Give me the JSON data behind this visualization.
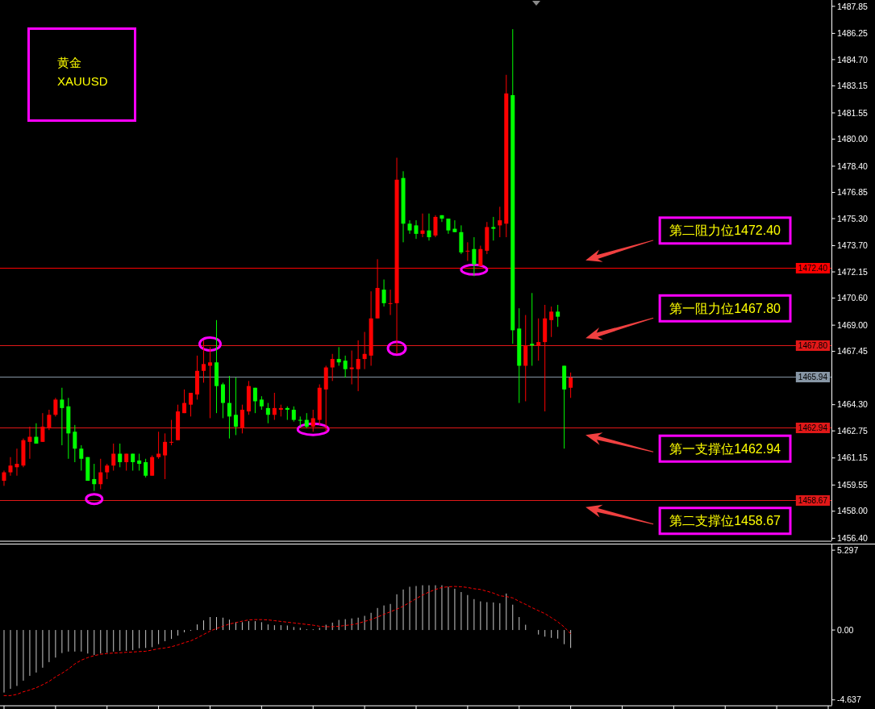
{
  "chart_data": [
    {
      "type": "candlestick",
      "title": "黄金",
      "subtitle": "XAUUSD",
      "categories": [
        null,
        null,
        null,
        null,
        null,
        null,
        null,
        null,
        null,
        null,
        null,
        null,
        null,
        null,
        null,
        null,
        null,
        null,
        null,
        null,
        null,
        null,
        null,
        null,
        null,
        null,
        null,
        null,
        null,
        null,
        null,
        null,
        null,
        null,
        null,
        null,
        null,
        null,
        null,
        null,
        null,
        null,
        null,
        null,
        null,
        null,
        null,
        null,
        null,
        null,
        null,
        null,
        null,
        null,
        null,
        null,
        null,
        null,
        null,
        null,
        null,
        null,
        null,
        null,
        null,
        null,
        null,
        null,
        null,
        null,
        null,
        null,
        null,
        null,
        null,
        null,
        null,
        null,
        null,
        null,
        null,
        null,
        null,
        null,
        null,
        null,
        null,
        null,
        null,
        null,
        null,
        null,
        null,
        null,
        null,
        null,
        null,
        null,
        null,
        null,
        null,
        null,
        null,
        null,
        null,
        null,
        null,
        null,
        null,
        null,
        null,
        null,
        null,
        null,
        null,
        null,
        null,
        null,
        null,
        null,
        null,
        null,
        null,
        null,
        null,
        null,
        null,
        null,
        null
      ],
      "ohlc": [
        [
          1459.8,
          1460.4,
          1459.5,
          1460.3
        ],
        [
          1460.3,
          1461.2,
          1460.1,
          1460.7
        ],
        [
          1460.6,
          1461.7,
          1460.1,
          1460.8
        ],
        [
          1460.7,
          1462.3,
          1460.6,
          1462.2
        ],
        [
          1462.1,
          1463.0,
          1461.1,
          1462.4
        ],
        [
          1462.4,
          1463.2,
          1462.0,
          1462.0
        ],
        [
          1462.1,
          1463.8,
          1462.1,
          1463.0
        ],
        [
          1462.9,
          1464.0,
          1462.8,
          1463.7
        ],
        [
          1463.7,
          1464.7,
          1463.6,
          1464.6
        ],
        [
          1464.6,
          1465.3,
          1461.9,
          1464.1
        ],
        [
          1464.2,
          1464.7,
          1461.1,
          1462.6
        ],
        [
          1462.7,
          1463.1,
          1460.9,
          1461.7
        ],
        [
          1461.7,
          1461.9,
          1460.4,
          1461.1
        ],
        [
          1461.2,
          1461.2,
          1459.8,
          1459.8
        ],
        [
          1459.9,
          1460.8,
          1459.2,
          1459.6
        ],
        [
          1459.6,
          1461.1,
          1459.3,
          1460.3
        ],
        [
          1460.3,
          1460.8,
          1459.9,
          1460.7
        ],
        [
          1460.7,
          1462.0,
          1460.4,
          1461.4
        ],
        [
          1461.4,
          1462.0,
          1460.6,
          1460.9
        ],
        [
          1460.9,
          1461.4,
          1460.4,
          1461.4
        ],
        [
          1461.4,
          1461.4,
          1460.4,
          1460.9
        ],
        [
          1461.0,
          1461.4,
          1460.4,
          1460.8
        ],
        [
          1460.9,
          1461.1,
          1460.0,
          1460.1
        ],
        [
          1460.1,
          1461.3,
          1460.1,
          1461.2
        ],
        [
          1461.2,
          1462.7,
          1461.1,
          1461.4
        ],
        [
          1461.3,
          1462.6,
          1459.9,
          1462.1
        ],
        [
          1462.1,
          1463.4,
          1461.9,
          1462.1
        ],
        [
          1462.2,
          1464.3,
          1462.2,
          1463.9
        ],
        [
          1463.8,
          1465.2,
          1463.8,
          1464.4
        ],
        [
          1464.3,
          1465.0,
          1463.6,
          1465.0
        ],
        [
          1464.9,
          1467.2,
          1464.6,
          1466.3
        ],
        [
          1466.3,
          1468.1,
          1465.6,
          1466.7
        ],
        [
          1466.6,
          1467.7,
          1463.5,
          1466.8
        ],
        [
          1466.8,
          1469.3,
          1463.8,
          1465.4
        ],
        [
          1465.5,
          1465.6,
          1463.5,
          1464.4
        ],
        [
          1464.4,
          1466.0,
          1462.3,
          1463.6
        ],
        [
          1463.7,
          1465.9,
          1462.5,
          1463.0
        ],
        [
          1462.9,
          1464.3,
          1462.6,
          1464.0
        ],
        [
          1463.9,
          1465.7,
          1463.7,
          1465.4
        ],
        [
          1465.3,
          1465.3,
          1463.8,
          1464.5
        ],
        [
          1464.6,
          1464.8,
          1464.0,
          1464.2
        ],
        [
          1464.1,
          1464.4,
          1463.2,
          1463.7
        ],
        [
          1463.7,
          1465.0,
          1463.4,
          1464.1
        ],
        [
          1464.0,
          1464.3,
          1463.6,
          1464.1
        ],
        [
          1464.1,
          1464.2,
          1463.4,
          1464.0
        ],
        [
          1464.0,
          1464.2,
          1463.3,
          1463.4
        ],
        [
          1463.4,
          1463.6,
          1463.0,
          1463.4
        ],
        [
          1463.4,
          1463.8,
          1462.9,
          1463.0
        ],
        [
          1463.0,
          1464.0,
          1462.7,
          1463.5
        ],
        [
          1463.4,
          1465.5,
          1463.1,
          1465.3
        ],
        [
          1465.2,
          1466.6,
          1462.7,
          1466.5
        ],
        [
          1466.5,
          1467.3,
          1465.7,
          1467.0
        ],
        [
          1467.0,
          1467.7,
          1466.6,
          1466.8
        ],
        [
          1466.9,
          1467.2,
          1465.9,
          1466.4
        ],
        [
          1466.4,
          1467.5,
          1465.5,
          1466.5
        ],
        [
          1466.4,
          1468.1,
          1465.1,
          1467.0
        ],
        [
          1467.0,
          1468.6,
          1466.4,
          1467.3
        ],
        [
          1467.2,
          1471.0,
          1466.6,
          1469.4
        ],
        [
          1469.4,
          1472.9,
          1469.4,
          1471.2
        ],
        [
          1471.1,
          1471.7,
          1470.1,
          1470.3
        ],
        [
          1470.3,
          1471.1,
          1469.6,
          1470.3
        ],
        [
          1470.3,
          1478.9,
          1467.3,
          1477.6
        ],
        [
          1477.7,
          1478.1,
          1473.9,
          1475.0
        ],
        [
          1475.0,
          1475.2,
          1474.4,
          1474.6
        ],
        [
          1474.9,
          1475.2,
          1474.1,
          1474.4
        ],
        [
          1474.4,
          1475.6,
          1474.2,
          1474.6
        ],
        [
          1474.6,
          1475.6,
          1474.0,
          1474.2
        ],
        [
          1474.3,
          1475.5,
          1474.2,
          1475.4
        ],
        [
          1475.5,
          1475.5,
          1475.1,
          1475.3
        ],
        [
          1475.3,
          1475.3,
          1474.4,
          1474.6
        ],
        [
          1474.7,
          1475.2,
          1474.5,
          1474.5
        ],
        [
          1474.5,
          1474.9,
          1473.2,
          1473.3
        ],
        [
          1473.4,
          1473.9,
          1472.8,
          1473.4
        ],
        [
          1473.5,
          1474.2,
          1471.9,
          1472.6
        ],
        [
          1472.5,
          1473.7,
          1472.5,
          1473.5
        ],
        [
          1473.4,
          1475.1,
          1473.2,
          1474.8
        ],
        [
          1474.8,
          1475.4,
          1474.0,
          1474.7
        ],
        [
          1474.9,
          1476.0,
          1474.2,
          1475.2
        ],
        [
          1475.0,
          1483.8,
          1474.2,
          1482.7
        ],
        [
          1482.6,
          1486.5,
          1467.9,
          1468.7
        ],
        [
          1468.8,
          1470.0,
          1464.4,
          1466.6
        ],
        [
          1466.6,
          1469.6,
          1464.5,
          1467.8
        ],
        [
          1467.9,
          1470.9,
          1466.6,
          1467.8
        ],
        [
          1467.8,
          1469.4,
          1466.9,
          1468.0
        ],
        [
          1468.0,
          1470.2,
          1463.9,
          1469.4
        ],
        [
          1469.3,
          1470.1,
          1468.3,
          1469.8
        ],
        [
          1469.8,
          1470.2,
          1468.9,
          1469.5
        ],
        [
          1466.6,
          1466.6,
          1461.7,
          1465.2
        ],
        [
          1465.3,
          1466.2,
          1464.7,
          1465.9
        ],
        null,
        null,
        null,
        null,
        null,
        null,
        null,
        null,
        null,
        null,
        null,
        null,
        null,
        null,
        null,
        null,
        null,
        null,
        null,
        null,
        null,
        null,
        null,
        null,
        null,
        null,
        null,
        null,
        null,
        null,
        null,
        null,
        null,
        null,
        null,
        null,
        null,
        null,
        null,
        null
      ],
      "colors": [
        "#ff0000",
        "#ff0000",
        "#ff0000",
        "#ff0000",
        "#ff0000",
        "#00ff00",
        "#ff0000",
        "#ff0000",
        "#ff0000",
        "#00ff00",
        "#00ff00",
        "#00ff00",
        "#00ff00",
        "#00ff00",
        "#00ff00",
        "#ff0000",
        "#ff0000",
        "#ff0000",
        "#00ff00",
        "#ff0000",
        "#00ff00",
        "#00ff00",
        "#00ff00",
        "#ff0000",
        "#ff0000",
        "#ff0000",
        "#ff0000",
        "#ff0000",
        "#ff0000",
        "#ff0000",
        "#ff0000",
        "#ff0000",
        "#ff0000",
        "#00ff00",
        "#00ff00",
        "#00ff00",
        "#00ff00",
        "#ff0000",
        "#ff0000",
        "#00ff00",
        "#00ff00",
        "#00ff00",
        "#ff0000",
        "#ff0000",
        "#00ff00",
        "#00ff00",
        "#00ff00",
        "#00ff00",
        "#ff0000",
        "#ff0000",
        "#ff0000",
        "#ff0000",
        "#00ff00",
        "#00ff00",
        "#ff0000",
        "#ff0000",
        "#ff0000",
        "#ff0000",
        "#ff0000",
        "#00ff00",
        "#ff0000",
        "#ff0000",
        "#00ff00",
        "#00ff00",
        "#00ff00",
        "#ff0000",
        "#00ff00",
        "#ff0000",
        "#00ff00",
        "#00ff00",
        "#00ff00",
        "#00ff00",
        "#ff0000",
        "#00ff00",
        "#ff0000",
        "#ff0000",
        "#00ff00",
        "#ff0000",
        "#ff0000",
        "#00ff00",
        "#00ff00",
        "#ff0000",
        "#00ff00",
        "#ff0000",
        "#ff0000",
        "#ff0000",
        "#00ff00",
        "#00ff00",
        "#ff0000",
        null,
        null,
        null,
        null,
        null,
        null,
        null,
        null,
        null,
        null,
        null,
        null,
        null,
        null,
        null,
        null,
        null,
        null,
        null,
        null,
        null,
        null,
        null,
        null,
        null,
        null,
        null,
        null,
        null,
        null,
        null,
        null,
        null,
        null,
        null,
        null,
        null,
        null,
        null,
        null
      ],
      "ylim": [
        1456.25,
        1488.2
      ],
      "yticks": [
        {
          "value": 1456.4,
          "label": "1456.40"
        },
        {
          "value": 1458,
          "label": "1458.00"
        },
        1459.55,
        1461.15,
        1462.75,
        {
          "value": 1464.3,
          "label": "1464.30"
        },
        1467.45,
        {
          "value": 1469,
          "label": "1469.00"
        },
        {
          "value": 1470.6,
          "label": "1470.60"
        },
        1472.15,
        {
          "value": 1473.7,
          "label": "1473.70"
        },
        {
          "value": 1475.3,
          "label": "1475.30"
        },
        1476.85,
        {
          "value": 1478.4,
          "label": "1478.40"
        },
        {
          "value": 1480,
          "label": "1480.00"
        },
        1481.55,
        1483.15,
        {
          "value": 1484.7,
          "label": "1484.70"
        },
        1486.25,
        1487.85
      ],
      "ref_lines": [
        {
          "axis": "y",
          "value": 1472.4,
          "label": "1472.40",
          "color": "#ff0000"
        },
        {
          "axis": "y",
          "value": 1467.8,
          "label": "1467.80",
          "color": "#e01818"
        },
        {
          "axis": "y",
          "value": 1465.94,
          "label": "1465.94",
          "color": "#8796a5"
        },
        {
          "axis": "y",
          "value": 1462.94,
          "label": "1462.94",
          "color": "#e01818"
        },
        {
          "axis": "y",
          "value": 1458.67,
          "label": "1458.67",
          "color": "#e01818"
        }
      ],
      "annotations": [
        {
          "text": "第二阻力位1472.40",
          "y": 1472.4
        },
        {
          "text": "第一阻力位1467.80",
          "y": 1467.8
        },
        {
          "text": "第一支撑位1462.94",
          "y": 1462.94
        },
        {
          "text": "第二支撑位1458.67",
          "y": 1458.67
        }
      ],
      "tick_labels": "y"
    },
    {
      "type": "bar",
      "categories": [
        null,
        null,
        null,
        null,
        null,
        null,
        null,
        null,
        null,
        null,
        null,
        null,
        null,
        null,
        null,
        null,
        null,
        null,
        null,
        null,
        null,
        null,
        null,
        null,
        null,
        null,
        null,
        null,
        null,
        null,
        null,
        null,
        null,
        null,
        null,
        null,
        null,
        null,
        null,
        null,
        null,
        null,
        null,
        null,
        null,
        null,
        null,
        null,
        null,
        null,
        null,
        null,
        null,
        null,
        null,
        null,
        null,
        null,
        null,
        null,
        null,
        null,
        null,
        null,
        null,
        null,
        null,
        null,
        null,
        null,
        null,
        null,
        null,
        null,
        null,
        null,
        null,
        null,
        null,
        null,
        null,
        null,
        null,
        null,
        null,
        null,
        null,
        null,
        null,
        null,
        null,
        null,
        null,
        null,
        null,
        null,
        null,
        null,
        null,
        null,
        null,
        null,
        null,
        null,
        null,
        null,
        null,
        null,
        null,
        null,
        null,
        null,
        null,
        null,
        null,
        null,
        null,
        null,
        null,
        null,
        null,
        null,
        null,
        null,
        null,
        null,
        null,
        null,
        null
      ],
      "series": [
        {
          "color": "#c8c8c8",
          "values": [
            -4.15,
            -3.9,
            -3.71,
            -3.36,
            -3.04,
            -2.82,
            -2.5,
            -2.13,
            -1.83,
            -1.53,
            -1.43,
            -1.43,
            -1.43,
            -1.56,
            -1.66,
            -1.56,
            -1.51,
            -1.43,
            -1.38,
            -1.38,
            -1.33,
            -1.21,
            -1.19,
            -1.14,
            -0.94,
            -0.74,
            -0.59,
            -0.37,
            -0.15,
            -0.05,
            0.37,
            0.64,
            0.86,
            0.86,
            0.82,
            0.69,
            0.52,
            0.52,
            0.59,
            0.59,
            0.52,
            0.37,
            0.32,
            0.32,
            0.3,
            0.2,
            0.15,
            0.05,
            0.05,
            0.15,
            0.35,
            0.49,
            0.67,
            0.72,
            0.77,
            0.82,
            0.94,
            1.14,
            1.46,
            1.63,
            1.73,
            2.37,
            2.69,
            2.87,
            2.92,
            2.97,
            2.97,
            2.97,
            2.97,
            2.87,
            2.74,
            2.52,
            2.32,
            2.05,
            1.9,
            1.85,
            1.83,
            1.78,
            2.42,
            1.68,
            0.86,
            0.35,
            null,
            -0.3,
            -0.44,
            -0.52,
            -0.57,
            -0.94,
            -1.19,
            null,
            null,
            null,
            null,
            null,
            null,
            null,
            null,
            null,
            null,
            null,
            null,
            null,
            null,
            null,
            null,
            null,
            null,
            null,
            null,
            null,
            null,
            null,
            null,
            null,
            null,
            null,
            null,
            null,
            null,
            null,
            null,
            null,
            null,
            null,
            null,
            null,
            null,
            null,
            null
          ]
        },
        {
          "type": "line",
          "color": "#ff0000",
          "line_style": "dashed",
          "values": [
            -4.35,
            -4.35,
            -4.27,
            -4.1,
            -3.98,
            -3.83,
            -3.63,
            -3.41,
            -3.11,
            -2.87,
            -2.59,
            -2.25,
            -2.0,
            -1.83,
            -1.7,
            -1.61,
            -1.56,
            -1.53,
            -1.51,
            -1.48,
            -1.46,
            -1.43,
            -1.41,
            -1.33,
            -1.24,
            -1.19,
            -1.11,
            -0.99,
            -0.84,
            -0.72,
            -0.52,
            -0.3,
            -0.07,
            0.1,
            0.25,
            0.4,
            0.49,
            0.59,
            0.67,
            0.69,
            0.69,
            0.67,
            0.62,
            0.57,
            0.52,
            0.47,
            0.42,
            0.37,
            0.32,
            0.25,
            0.22,
            0.22,
            0.25,
            0.3,
            0.35,
            0.44,
            0.57,
            0.69,
            0.86,
            1.04,
            1.21,
            1.38,
            1.58,
            1.83,
            2.08,
            2.32,
            2.52,
            2.69,
            2.82,
            2.87,
            2.89,
            2.87,
            2.82,
            2.74,
            2.69,
            2.57,
            2.45,
            2.27,
            2.22,
            2.13,
            1.9,
            1.7,
            1.48,
            1.28,
            1.09,
            0.82,
            0.54,
            0.2,
            -0.25,
            null,
            null,
            null,
            null,
            null,
            null,
            null,
            null,
            null,
            null,
            null,
            null,
            null,
            null,
            null,
            null,
            null,
            null,
            null,
            null,
            null,
            null,
            null,
            null,
            null,
            null,
            null,
            null,
            null,
            null,
            null,
            null,
            null,
            null,
            null,
            null,
            null,
            null,
            null,
            null
          ]
        }
      ],
      "ylim": [
        -5.0,
        5.65
      ],
      "yticks": [
        -4.637,
        {
          "value": 0,
          "label": "0.00"
        },
        5.297
      ],
      "tick_labels": "y"
    }
  ]
}
